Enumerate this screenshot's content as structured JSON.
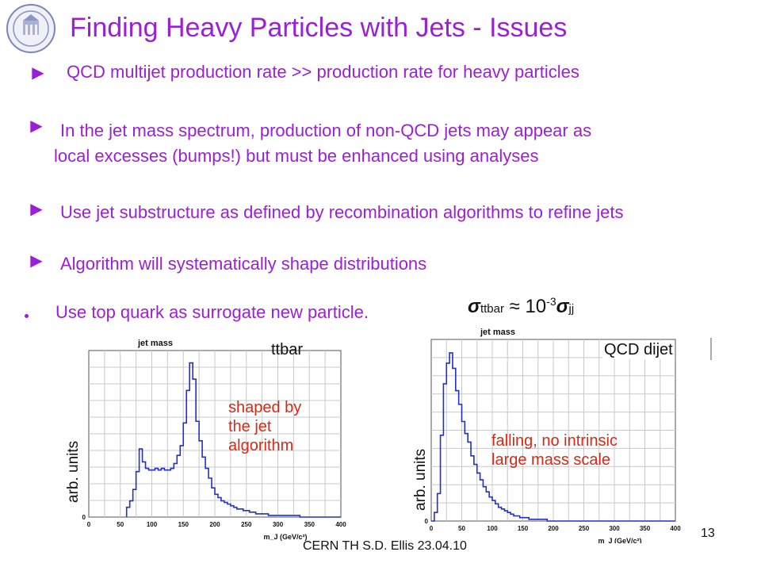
{
  "title": "Finding Heavy Particles with Jets - Issues",
  "logo": {
    "name": "university-seal-icon"
  },
  "bullets": [
    {
      "icon": "list-bullet-icon",
      "lines": [
        "QCD multijet production rate >> production rate for heavy particles"
      ]
    },
    {
      "icon": "list-bullet-icon",
      "lines": [
        "In the jet mass spectrum, production of non-QCD jets may appear as",
        "local excesses (bumps!) but must be enhanced using analyses"
      ]
    },
    {
      "icon": "list-bullet-icon",
      "lines": [
        "Use jet substructure as defined by recombination algorithms to refine jets"
      ]
    },
    {
      "icon": "list-bullet-icon",
      "lines": [
        "Algorithm will systematically shape distributions"
      ]
    }
  ],
  "sub_bullet": "Use top quark as surrogate new particle.",
  "formula": {
    "sigma": "σ",
    "sub1": "ttbar",
    "approx": " ≈ 10",
    "exp": "-3",
    "sub2": "jj"
  },
  "charts_meta": {
    "left": {
      "label": "ttbar",
      "note_lines": [
        "shaped by",
        "the jet",
        "algorithm"
      ],
      "ylabel": "arb. units"
    },
    "right": {
      "label": "QCD dijet",
      "note_lines": [
        "falling, no intrinsic",
        "large mass scale"
      ],
      "ylabel": "arb. units"
    }
  },
  "footer": "CERN TH     S.D. Ellis     23.04.10",
  "page_number": "13",
  "colors": {
    "accent": "#9b1fd6",
    "note": "#d62a16",
    "histogram": "#2030c8",
    "grid": "#c8c8c8"
  },
  "chart_data": [
    {
      "type": "line",
      "title": "jet mass",
      "xlabel": "m_J (GeV/c²)",
      "ylabel": "",
      "xlim": [
        0,
        400
      ],
      "xticks": [
        "0",
        "50",
        "100",
        "150",
        "200",
        "250",
        "300",
        "350",
        "400"
      ],
      "yticks": [
        "0"
      ],
      "grid": true,
      "x": [
        60,
        65,
        70,
        75,
        80,
        85,
        90,
        95,
        100,
        105,
        110,
        115,
        120,
        125,
        130,
        135,
        140,
        145,
        150,
        155,
        160,
        165,
        170,
        175,
        180,
        185,
        190,
        195,
        200,
        205,
        210,
        215,
        220,
        225,
        230,
        235,
        240,
        245,
        250,
        255,
        260,
        265,
        270,
        275,
        280,
        285,
        290,
        295,
        300,
        305,
        310,
        315,
        320,
        325,
        330,
        335,
        340,
        345,
        350,
        355,
        360,
        365,
        370,
        375,
        380,
        385,
        390,
        395
      ],
      "series": [
        {
          "values": [
            6,
            10,
            17,
            28,
            42,
            34,
            30,
            29,
            29,
            30,
            29,
            30,
            29,
            29,
            30,
            33,
            38,
            44,
            58,
            78,
            95,
            85,
            59,
            47,
            37,
            30,
            24,
            18,
            14,
            12,
            10,
            9,
            8,
            7,
            6,
            5,
            5,
            4,
            4,
            3,
            3,
            2,
            2,
            2,
            2,
            1,
            1,
            1,
            1,
            1,
            1,
            1,
            1,
            1,
            1,
            0,
            0,
            0,
            0,
            0,
            0,
            0,
            0,
            0,
            0,
            0,
            0,
            0
          ]
        }
      ]
    },
    {
      "type": "line",
      "title": "jet mass",
      "xlabel": "m_J (GeV/c²)",
      "ylabel": "",
      "xlim": [
        0,
        400
      ],
      "xticks": [
        "0",
        "50",
        "100",
        "150",
        "200",
        "250",
        "300",
        "350",
        "400"
      ],
      "yticks": [
        "0"
      ],
      "grid": true,
      "x": [
        0,
        5,
        10,
        15,
        20,
        25,
        30,
        35,
        40,
        45,
        50,
        55,
        60,
        65,
        70,
        75,
        80,
        85,
        90,
        95,
        100,
        105,
        110,
        115,
        120,
        125,
        130,
        135,
        140,
        145,
        150,
        155,
        160,
        165,
        170,
        175,
        180,
        185,
        190,
        195,
        200,
        205,
        210,
        215,
        220,
        225,
        230,
        235,
        240,
        245,
        250,
        255,
        260,
        265,
        270,
        275,
        280,
        285,
        290,
        295,
        300,
        305,
        310,
        315,
        320,
        325,
        330,
        335,
        340,
        345,
        350,
        355,
        360,
        365,
        370,
        375,
        380,
        385,
        390,
        395
      ],
      "series": [
        {
          "values": [
            0,
            5,
            16,
            50,
            80,
            92,
            98,
            89,
            76,
            68,
            58,
            51,
            46,
            38,
            33,
            28,
            24,
            20,
            17,
            14,
            12,
            10,
            8,
            7,
            6,
            5,
            4,
            3,
            3,
            2,
            2,
            2,
            1,
            1,
            1,
            1,
            1,
            1,
            0,
            0,
            0,
            0,
            0,
            0,
            0,
            0,
            0,
            0,
            0,
            0,
            0,
            0,
            0,
            0,
            0,
            0,
            0,
            0,
            0,
            0,
            0,
            0,
            0,
            0,
            0,
            0,
            0,
            0,
            0,
            0,
            0,
            0,
            0,
            0,
            0,
            0,
            0,
            0,
            0,
            0
          ]
        }
      ]
    }
  ]
}
